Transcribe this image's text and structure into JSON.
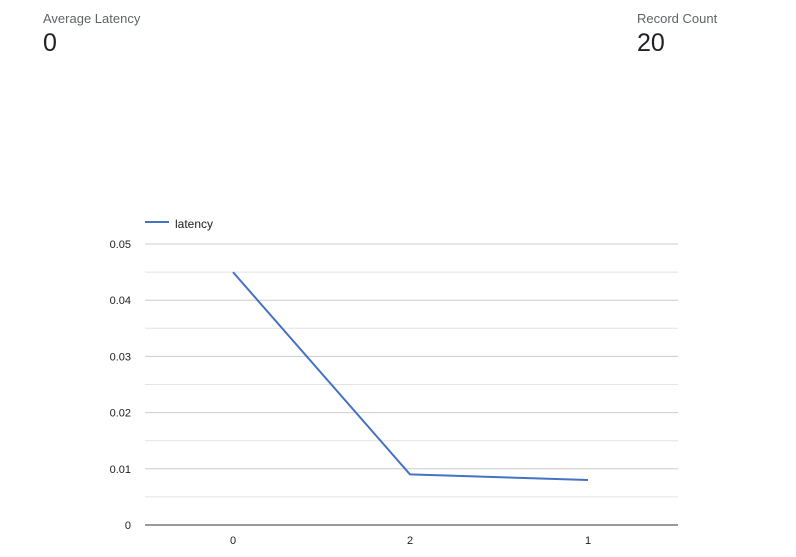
{
  "scorecards": [
    {
      "label": "Average Latency",
      "value": "0"
    },
    {
      "label": "Record Count",
      "value": "20"
    }
  ],
  "chart_data": {
    "type": "line",
    "categories": [
      "0",
      "2",
      "1"
    ],
    "series": [
      {
        "name": "latency",
        "values": [
          0.045,
          0.009,
          0.008
        ],
        "color": "#4472C4"
      }
    ],
    "ylim": [
      0,
      0.05
    ],
    "yticks": [
      "0",
      "0.01",
      "0.02",
      "0.03",
      "0.04",
      "0.05"
    ],
    "grid": true,
    "legend": "top-left"
  }
}
